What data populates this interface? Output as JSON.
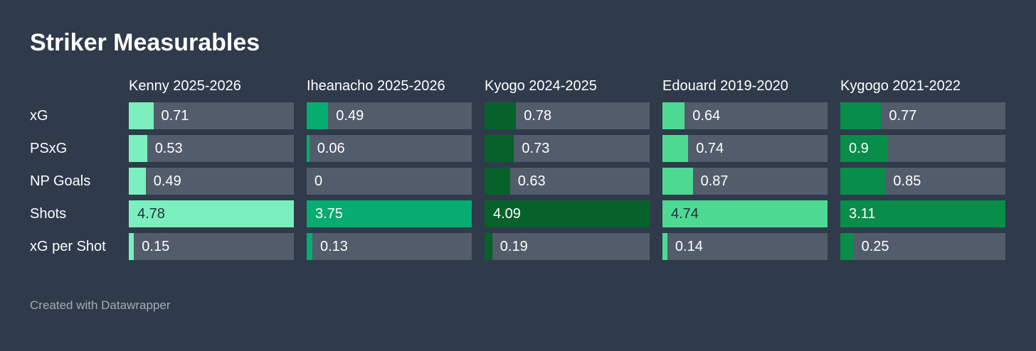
{
  "title": "Striker Measurables",
  "footer": "Created with Datawrapper",
  "colors": {
    "background": "#2F3A4A",
    "bar_track": "#525C6B",
    "text_light": "#FFFFFF",
    "text_dark": "#23303F",
    "footer_text": "#A2ABB6"
  },
  "chart_data": {
    "type": "table",
    "title": "Striker Measurables",
    "bar_scale": "each column's bars are scaled relative to that column's max value",
    "metrics": [
      "xG",
      "PSxG",
      "NP Goals",
      "Shots",
      "xG per Shot"
    ],
    "columns": [
      {
        "label": "Kenny 2025-2026",
        "color": "#7BEFBD",
        "text_on_fill": "dark",
        "values": [
          0.71,
          0.53,
          0.49,
          4.78,
          0.15
        ],
        "display": [
          "0.71",
          "0.53",
          "0.49",
          "4.78",
          "0.15"
        ]
      },
      {
        "label": "Iheanacho 2025-2026",
        "color": "#06AC70",
        "text_on_fill": "light",
        "values": [
          0.49,
          0.06,
          0,
          3.75,
          0.13
        ],
        "display": [
          "0.49",
          "0.06",
          "0",
          "3.75",
          "0.13"
        ]
      },
      {
        "label": "Kyogo 2024-2025",
        "color": "#07612B",
        "text_on_fill": "light",
        "values": [
          0.78,
          0.73,
          0.63,
          4.09,
          0.19
        ],
        "display": [
          "0.78",
          "0.73",
          "0.63",
          "4.09",
          "0.19"
        ]
      },
      {
        "label": "Edouard 2019-2020",
        "color": "#4ED993",
        "text_on_fill": "dark",
        "values": [
          0.64,
          0.74,
          0.87,
          4.74,
          0.14
        ],
        "display": [
          "0.64",
          "0.74",
          "0.87",
          "4.74",
          "0.14"
        ]
      },
      {
        "label": "Kygogo 2021-2022",
        "color": "#088D4B",
        "text_on_fill": "light",
        "values": [
          0.77,
          0.9,
          0.85,
          3.11,
          0.25
        ],
        "display": [
          "0.77",
          "0.9",
          "0.85",
          "3.11",
          "0.25"
        ]
      }
    ]
  }
}
